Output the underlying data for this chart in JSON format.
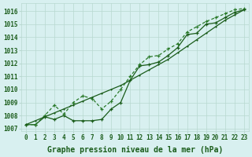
{
  "background_color": "#d8f0f0",
  "grid_color": "#b8d8d0",
  "line_color_dark": "#1a5c1a",
  "line_color_med": "#2a7a2a",
  "xlabel": "Graphe pression niveau de la mer (hPa)",
  "xlabel_fontsize": 7,
  "ylabel_values": [
    1007,
    1008,
    1009,
    1010,
    1011,
    1012,
    1013,
    1014,
    1015,
    1016
  ],
  "xlim": [
    -0.5,
    23.5
  ],
  "ylim": [
    1006.8,
    1016.6
  ],
  "x_ticks": [
    0,
    1,
    2,
    3,
    4,
    5,
    6,
    7,
    8,
    9,
    10,
    11,
    12,
    13,
    14,
    15,
    16,
    17,
    18,
    19,
    20,
    21,
    22,
    23
  ],
  "series_straight": [
    1007.3,
    1007.6,
    1007.9,
    1008.2,
    1008.5,
    1008.8,
    1009.1,
    1009.4,
    1009.7,
    1010.0,
    1010.3,
    1010.7,
    1011.1,
    1011.5,
    1011.9,
    1012.3,
    1012.8,
    1013.3,
    1013.8,
    1014.3,
    1014.8,
    1015.3,
    1015.7,
    1016.1
  ],
  "series_dotted": [
    1007.3,
    1007.3,
    1007.9,
    1007.7,
    1008.0,
    1007.6,
    1007.6,
    1007.6,
    1007.7,
    1008.5,
    1009.0,
    1010.7,
    1011.8,
    1011.9,
    1012.1,
    1012.6,
    1013.2,
    1014.2,
    1014.3,
    1015.0,
    1015.1,
    1015.5,
    1015.9,
    1016.1
  ],
  "series_upper": [
    1007.3,
    1007.3,
    1008.0,
    1008.8,
    1008.1,
    1009.0,
    1009.5,
    1009.3,
    1008.5,
    1009.1,
    1010.0,
    1011.0,
    1011.9,
    1012.5,
    1012.6,
    1013.1,
    1013.5,
    1014.4,
    1014.8,
    1015.2,
    1015.5,
    1015.8,
    1016.1,
    1016.2
  ],
  "tick_fontsize": 5.5,
  "tick_color": "#1a5c1a"
}
